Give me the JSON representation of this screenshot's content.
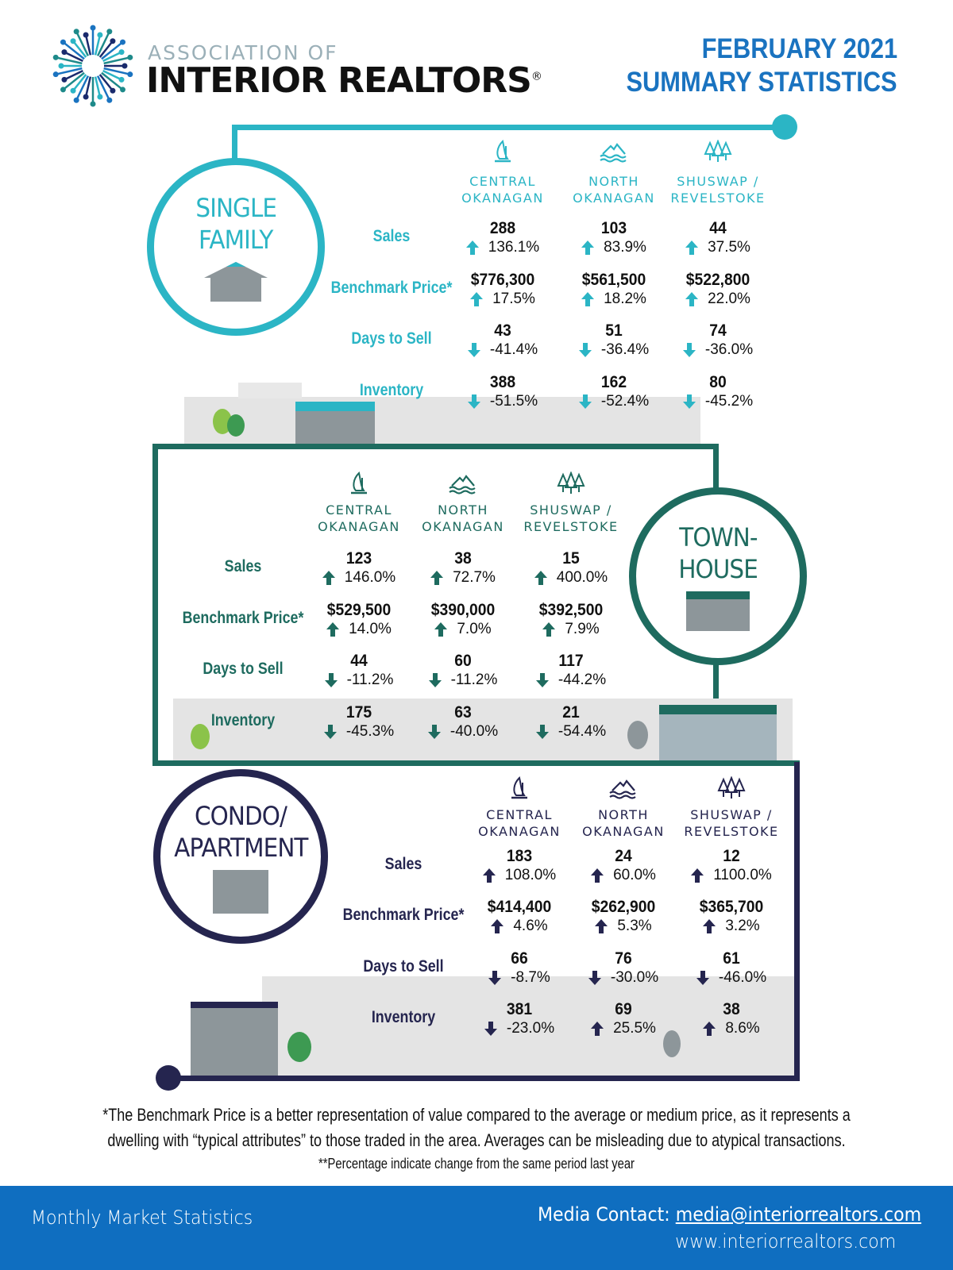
{
  "header": {
    "logo_small": "ASSOCIATION OF",
    "logo_big": "INTERIOR REALTORS",
    "logo_reg": "®",
    "title_line1": "FEBRUARY 2021",
    "title_line2": "SUMMARY STATISTICS"
  },
  "colors": {
    "single_family": "#2bb5c5",
    "townhouse": "#1e6b5f",
    "condo": "#25254f",
    "title": "#1a73c0",
    "footer": "#0f6ec0"
  },
  "regions": [
    {
      "name": "CENTRAL",
      "name2": "OKANAGAN",
      "icon": "sailboat-icon"
    },
    {
      "name": "NORTH",
      "name2": "OKANAGAN",
      "icon": "mountain-waves-icon"
    },
    {
      "name": "SHUSWAP /",
      "name2": "REVELSTOKE",
      "icon": "trees-icon"
    }
  ],
  "row_labels": [
    "Sales",
    "Benchmark Price*",
    "Days to Sell",
    "Inventory"
  ],
  "sections": [
    {
      "id": "single-family",
      "title1": "SINGLE",
      "title2": "FAMILY",
      "rows": [
        [
          {
            "v": "288",
            "p": "136.1%",
            "d": "up"
          },
          {
            "v": "103",
            "p": "83.9%",
            "d": "up"
          },
          {
            "v": "44",
            "p": "37.5%",
            "d": "up"
          }
        ],
        [
          {
            "v": "$776,300",
            "p": "17.5%",
            "d": "up"
          },
          {
            "v": "$561,500",
            "p": "18.2%",
            "d": "up"
          },
          {
            "v": "$522,800",
            "p": "22.0%",
            "d": "up"
          }
        ],
        [
          {
            "v": "43",
            "p": "-41.4%",
            "d": "down"
          },
          {
            "v": "51",
            "p": "-36.4%",
            "d": "down"
          },
          {
            "v": "74",
            "p": "-36.0%",
            "d": "down"
          }
        ],
        [
          {
            "v": "388",
            "p": "-51.5%",
            "d": "down"
          },
          {
            "v": "162",
            "p": "-52.4%",
            "d": "down"
          },
          {
            "v": "80",
            "p": "-45.2%",
            "d": "down"
          }
        ]
      ]
    },
    {
      "id": "townhouse",
      "title1": "TOWN-",
      "title2": "HOUSE",
      "rows": [
        [
          {
            "v": "123",
            "p": "146.0%",
            "d": "up"
          },
          {
            "v": "38",
            "p": "72.7%",
            "d": "up"
          },
          {
            "v": "15",
            "p": "400.0%",
            "d": "up"
          }
        ],
        [
          {
            "v": "$529,500",
            "p": "14.0%",
            "d": "up"
          },
          {
            "v": "$390,000",
            "p": "7.0%",
            "d": "up"
          },
          {
            "v": "$392,500",
            "p": "7.9%",
            "d": "up"
          }
        ],
        [
          {
            "v": "44",
            "p": "-11.2%",
            "d": "down"
          },
          {
            "v": "60",
            "p": "-11.2%",
            "d": "down"
          },
          {
            "v": "117",
            "p": "-44.2%",
            "d": "down"
          }
        ],
        [
          {
            "v": "175",
            "p": "-45.3%",
            "d": "down"
          },
          {
            "v": "63",
            "p": "-40.0%",
            "d": "down"
          },
          {
            "v": "21",
            "p": "-54.4%",
            "d": "down"
          }
        ]
      ]
    },
    {
      "id": "condo",
      "title1": "CONDO/",
      "title2": "APARTMENT",
      "rows": [
        [
          {
            "v": "183",
            "p": "108.0%",
            "d": "up"
          },
          {
            "v": "24",
            "p": "60.0%",
            "d": "up"
          },
          {
            "v": "12",
            "p": "1100.0%",
            "d": "up"
          }
        ],
        [
          {
            "v": "$414,400",
            "p": "4.6%",
            "d": "up"
          },
          {
            "v": "$262,900",
            "p": "5.3%",
            "d": "up"
          },
          {
            "v": "$365,700",
            "p": "3.2%",
            "d": "up"
          }
        ],
        [
          {
            "v": "66",
            "p": "-8.7%",
            "d": "down"
          },
          {
            "v": "76",
            "p": "-30.0%",
            "d": "down"
          },
          {
            "v": "61",
            "p": "-46.0%",
            "d": "down"
          }
        ],
        [
          {
            "v": "381",
            "p": "-23.0%",
            "d": "down"
          },
          {
            "v": "69",
            "p": "25.5%",
            "d": "up"
          },
          {
            "v": "38",
            "p": "8.6%",
            "d": "up"
          }
        ]
      ]
    }
  ],
  "footnotes": {
    "line1": "*The Benchmark Price is a better representation of value compared to the average or medium price, as it represents a",
    "line2": "dwelling with “typical attributes” to those traded in the area. Averages can be misleading due to atypical transactions.",
    "line3": "**Percentage indicate change from the same period last year"
  },
  "footer": {
    "left": "Monthly Market Statistics",
    "contact_label": "Media Contact: ",
    "contact_email": "media@interiorrealtors.com",
    "website": "www.interiorrealtors.com"
  }
}
